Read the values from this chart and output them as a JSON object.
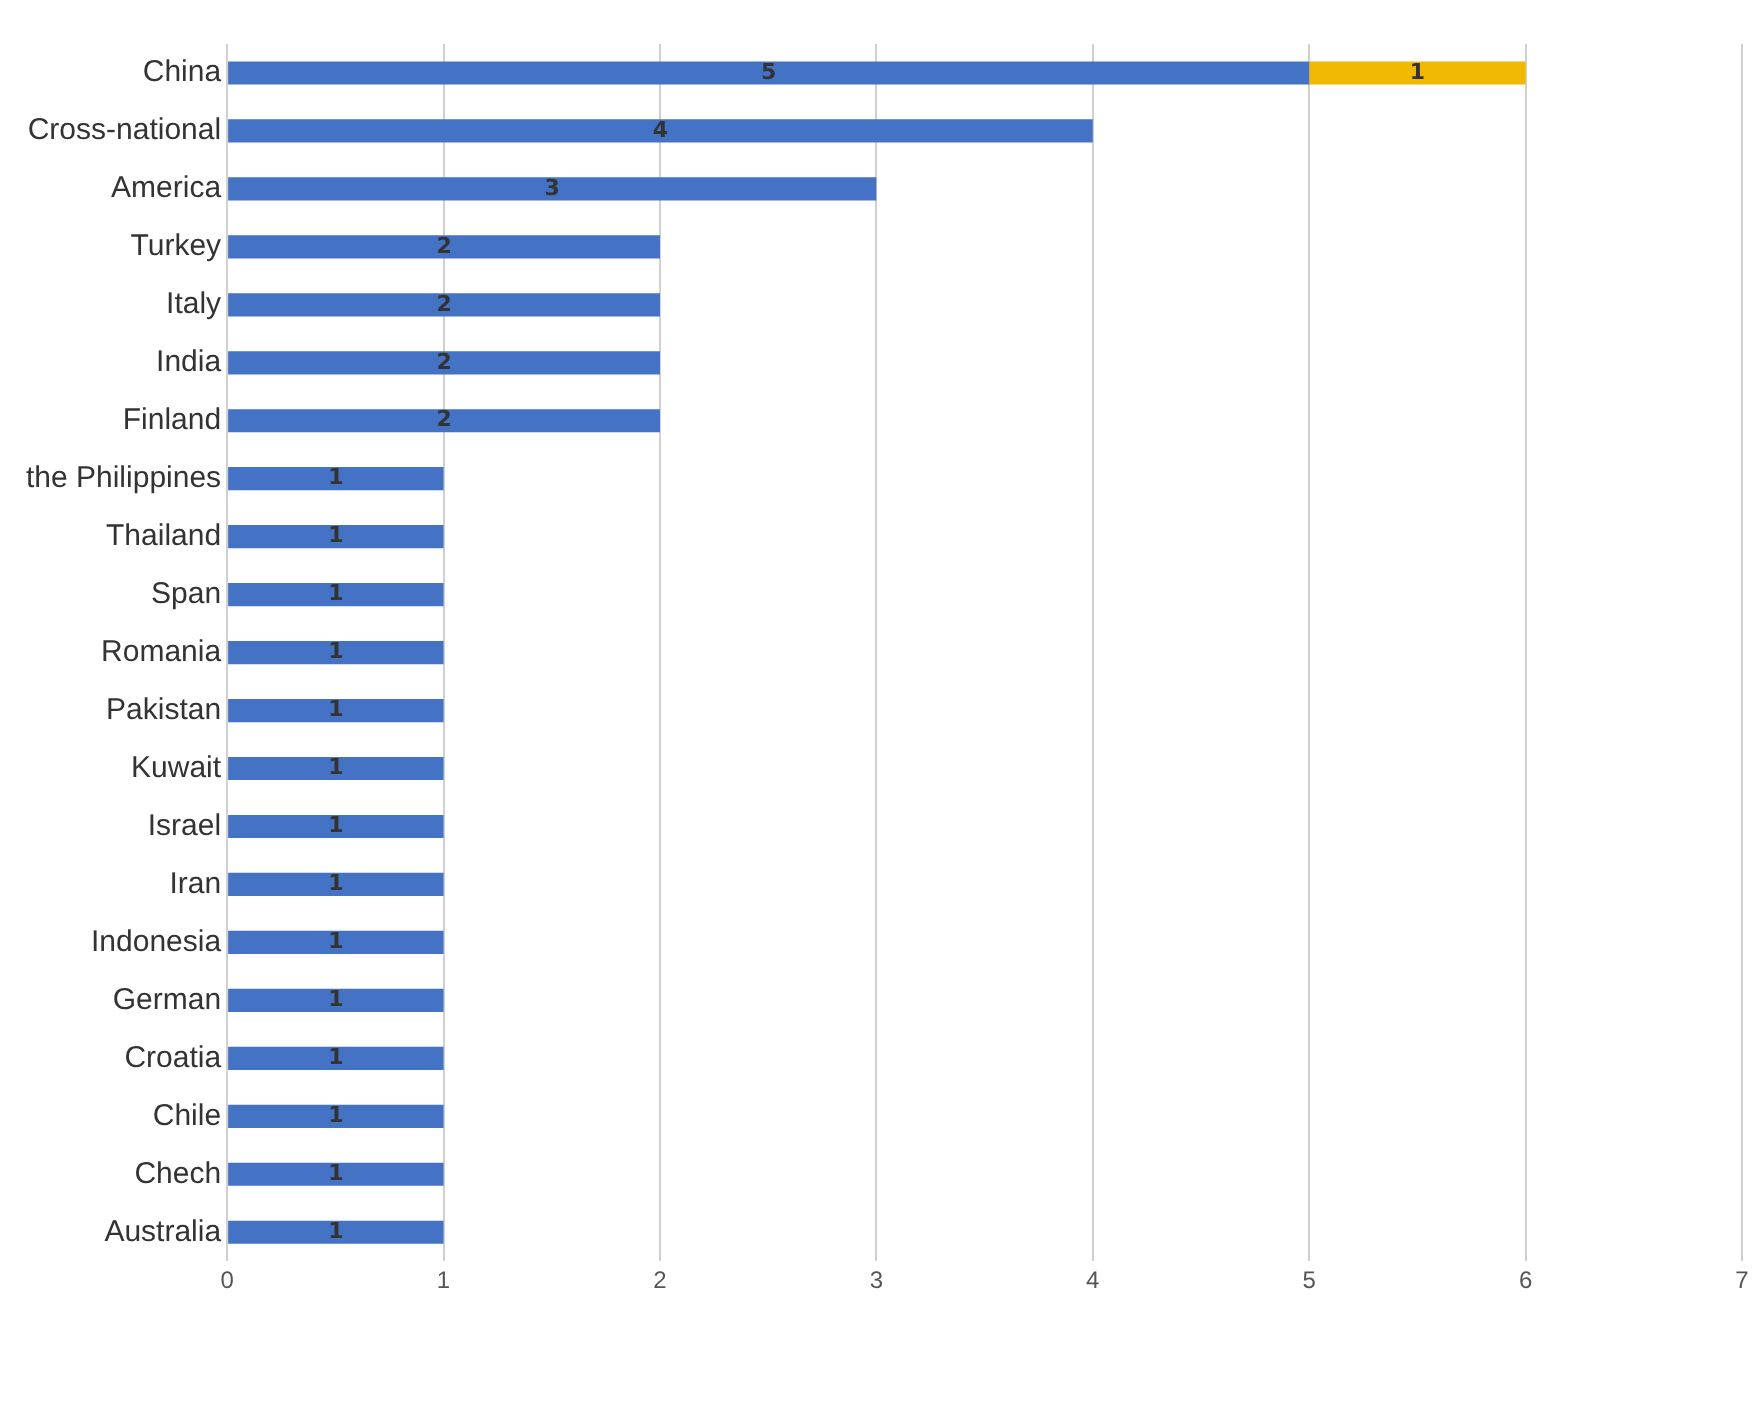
{
  "chart_data": {
    "type": "bar",
    "orientation": "horizontal",
    "stacked": true,
    "categories": [
      "China",
      "Cross-national",
      "America",
      "Turkey",
      "Italy",
      "India",
      "Finland",
      "the Philippines",
      "Thailand",
      "Span",
      "Romania",
      "Pakistan",
      "Kuwait",
      "Israel",
      "Iran",
      "Indonesia",
      "German",
      "Croatia",
      "Chile",
      "Chech",
      "Australia"
    ],
    "series": [
      {
        "color": "#4472c4",
        "values": [
          5,
          4,
          3,
          2,
          2,
          2,
          2,
          1,
          1,
          1,
          1,
          1,
          1,
          1,
          1,
          1,
          1,
          1,
          1,
          1,
          1
        ]
      },
      {
        "color": "#f1b800",
        "values": [
          1,
          null,
          null,
          null,
          null,
          null,
          null,
          null,
          null,
          null,
          null,
          null,
          null,
          null,
          null,
          null,
          null,
          null,
          null,
          null,
          null
        ]
      }
    ],
    "xlim": [
      0,
      7
    ],
    "xticks": [
      0,
      1,
      2,
      3,
      4,
      5,
      6,
      7
    ],
    "grid": "x",
    "data_labels": true,
    "legend": false
  }
}
